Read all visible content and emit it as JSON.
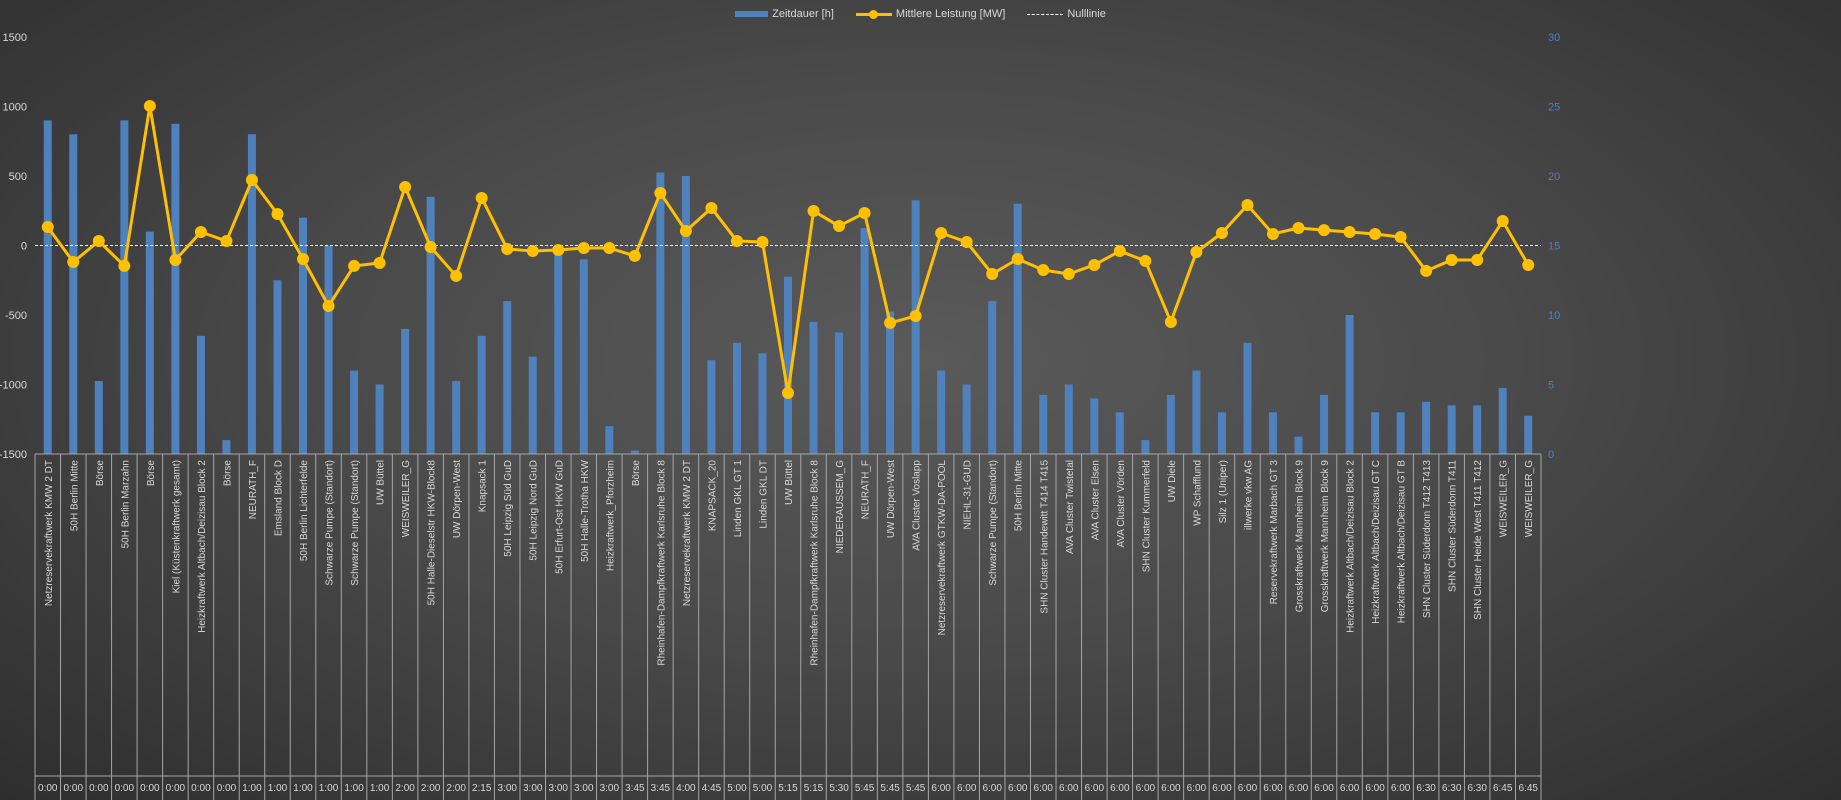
{
  "chart_data": {
    "type": "bar+line",
    "legend": {
      "position": "top",
      "entries": [
        "Zeitdauer [h]",
        "Mittlere Leistung [MW]",
        "Nulllinie"
      ]
    },
    "colors": {
      "bars": "#4f81bd",
      "line": "#ffc000",
      "zero_line": "#ffffff"
    },
    "y_left": {
      "range": [
        -1500,
        1500
      ],
      "ticks": [
        "1500",
        "1000",
        "500",
        "0",
        "-500",
        "-1000",
        "-1500"
      ],
      "series": "Mittlere Leistung [MW]"
    },
    "y_right": {
      "range": [
        0,
        30
      ],
      "ticks": [
        "30",
        "25",
        "20",
        "15",
        "10",
        "5",
        "0"
      ],
      "series": "Zeitdauer [h]"
    },
    "categories": [
      "Netzreservekraftwerk KMW 2 DT",
      "50H Berlin Mitte",
      "Börse",
      "50H Berlin Marzahn",
      "Börse",
      "Kiel (Küstenkraftwerk gesamt)",
      "Heizkraftwerk Altbach/Deizisau Block 2",
      "Börse",
      "NEURATH_F",
      "Emsland Block D",
      "50H Berlin Lichterfelde",
      "Schwarze Pumpe (Standort)",
      "Schwarze Pumpe (Standort)",
      "UW Büttel",
      "WEISWEILER_G",
      "50H Halle-Dieselstr HKW-Block8",
      "UW Dörpen-West",
      "Knapsack 1",
      "50H Leipzig Süd GuD",
      "50H Leipzig Nord GuD",
      "50H Erfurt-Ost HKW GuD",
      "50H Halle-Trotha HKW",
      "Heizkraftwerk_Pforzheim",
      "Börse",
      "Rheinhafen-Dampfkraftwerk Karlsruhe Block 8",
      "Netzreservekraftwerk KMW 2 DT",
      "KNAPSACK_20",
      "Linden GKL GT 1",
      "Linden GKL DT",
      "UW Büttel",
      "Rheinhafen-Dampfkraftwerk Karlsruhe Block 8",
      "NIEDERAUSSEM_G",
      "NEURATH_F",
      "UW Dörpen-West",
      "AVA Cluster Voslapp",
      "Netzreservekraftwerk GTKW-DA-POOL",
      "NIEHL-31-GUD",
      "Schwarze Pumpe (Standort)",
      "50H Berlin Mitte",
      "SHN Cluster Handewitt T414 T415",
      "AVA Cluster Twistetal",
      "AVA Cluster Elsen",
      "AVA Cluster Vörden",
      "SHN Cluster Kummerfeld",
      "UW Diele",
      "WP Schafflund",
      "Silz 1 (Uniper)",
      "illwerke vkw AG",
      "Reservekraftwerk Marbach GT 3",
      "Grosskraftwerk Mannheim Block 9",
      "Grosskraftwerk Mannheim Block 9",
      "Heizkraftwerk Altbach/Deizisau Block 2",
      "Heizkraftwerk Altbach/Deizisau GT C",
      "Heizkraftwerk Altbach/Deizisau GT B",
      "SHN Cluster Süderdonn T412 T413",
      "SHN Cluster Süderdonn T411",
      "SHN Cluster Heide West T411 T412",
      "WEISWEILER_G",
      "WEISWEILER_G"
    ],
    "times": [
      "0:00",
      "0:00",
      "0:00",
      "0:00",
      "0:00",
      "0:00",
      "0:00",
      "0:00",
      "1:00",
      "1:00",
      "1:00",
      "1:00",
      "1:00",
      "1:00",
      "2:00",
      "2:00",
      "2:00",
      "2:15",
      "3:00",
      "3:00",
      "3:00",
      "3:00",
      "3:00",
      "3:45",
      "3:45",
      "4:00",
      "4:45",
      "5:00",
      "5:00",
      "5:15",
      "5:15",
      "5:30",
      "5:45",
      "5:45",
      "5:45",
      "6:00",
      "6:00",
      "6:00",
      "6:00",
      "6:00",
      "6:00",
      "6:00",
      "6:00",
      "6:00",
      "6:00",
      "6:00",
      "6:00",
      "6:00",
      "6:00",
      "6:00",
      "6:00",
      "6:00",
      "6:00",
      "6:00",
      "6:30",
      "6:30",
      "6:30",
      "6:45",
      "6:45"
    ],
    "series": [
      {
        "name": "Zeitdauer [h]",
        "axis": "right",
        "type": "bar",
        "values": [
          24,
          23,
          5.25,
          24,
          16,
          23.75,
          8.5,
          1,
          23,
          12.5,
          17,
          15,
          6,
          5,
          9,
          18.5,
          5.25,
          8.5,
          11,
          7,
          15,
          14,
          2,
          0.25,
          20.25,
          20,
          6.75,
          8,
          7.25,
          12.75,
          9.5,
          8.75,
          16.25,
          10.25,
          18.25,
          6,
          5,
          11,
          18,
          4.25,
          5,
          4,
          3,
          1,
          4.25,
          6,
          3,
          8,
          3,
          1.25,
          4.25,
          10,
          3,
          3,
          3.75,
          3.5,
          3.5,
          4.75,
          2.75
        ]
      },
      {
        "name": "Mittlere Leistung [MW]",
        "axis": "left",
        "type": "line",
        "values": [
          133,
          -119,
          32,
          -147,
          1004,
          -104,
          97,
          32,
          471,
          227,
          -97,
          -435,
          -147,
          -126,
          421,
          -11,
          -219,
          342,
          -25,
          -40,
          -32,
          -18,
          -18,
          -75,
          378,
          104,
          270,
          32,
          25,
          -1061,
          248,
          140,
          234,
          -557,
          -507,
          90,
          25,
          -205,
          -97,
          -176,
          -205,
          -140,
          -40,
          -111,
          -550,
          -47,
          90,
          291,
          83,
          126,
          111,
          97,
          83,
          61,
          -183,
          -104,
          -104,
          176,
          -140
        ]
      },
      {
        "name": "Nulllinie",
        "axis": "left",
        "type": "line",
        "value": 0
      }
    ]
  }
}
